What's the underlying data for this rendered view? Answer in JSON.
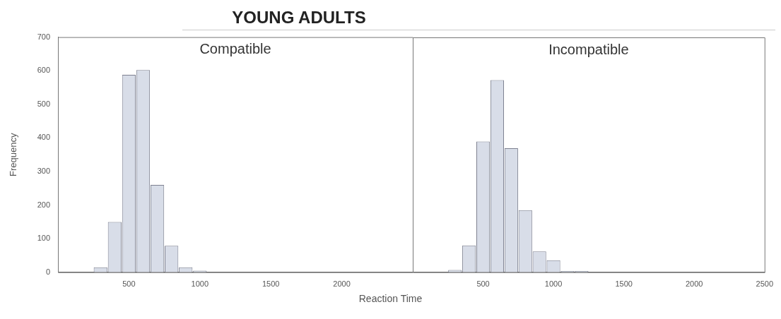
{
  "chart_data": [
    {
      "type": "histogram",
      "title": "YOUNG ADULTS",
      "subtitle": "Compatible",
      "xlabel": "Reaction Time",
      "ylabel": "Frequency",
      "bins": [
        250,
        350,
        450,
        550,
        650,
        750,
        850,
        950,
        1050,
        1150,
        1250,
        1350,
        1450
      ],
      "values": [
        15,
        150,
        588,
        602,
        260,
        79,
        15,
        5,
        null,
        0,
        0,
        null
      ],
      "color": "#d8dde8",
      "xlim": [
        0,
        2500
      ],
      "xticks": [
        500,
        1000,
        1500,
        2000
      ],
      "ylim": [
        0,
        700
      ],
      "yticks": [
        0,
        100,
        200,
        300,
        400,
        500,
        600,
        700
      ],
      "grid": false,
      "legend": false
    },
    {
      "type": "histogram",
      "subtitle": "Incompatible",
      "bins": [
        250,
        350,
        450,
        550,
        650,
        750,
        850,
        950,
        1050,
        1150,
        1250,
        1350
      ],
      "values": [
        7,
        80,
        390,
        573,
        370,
        185,
        62,
        36,
        4,
        4,
        null
      ],
      "color": "#d8dde8",
      "xlim": [
        0,
        2500
      ],
      "xticks": [
        500,
        1000,
        1500,
        2000,
        2500
      ],
      "ylim": [
        0,
        700
      ],
      "yticks": [
        0,
        100,
        200,
        300,
        400,
        500,
        600,
        700
      ],
      "grid": false,
      "legend": false,
      "tick_labels": "x"
    }
  ]
}
